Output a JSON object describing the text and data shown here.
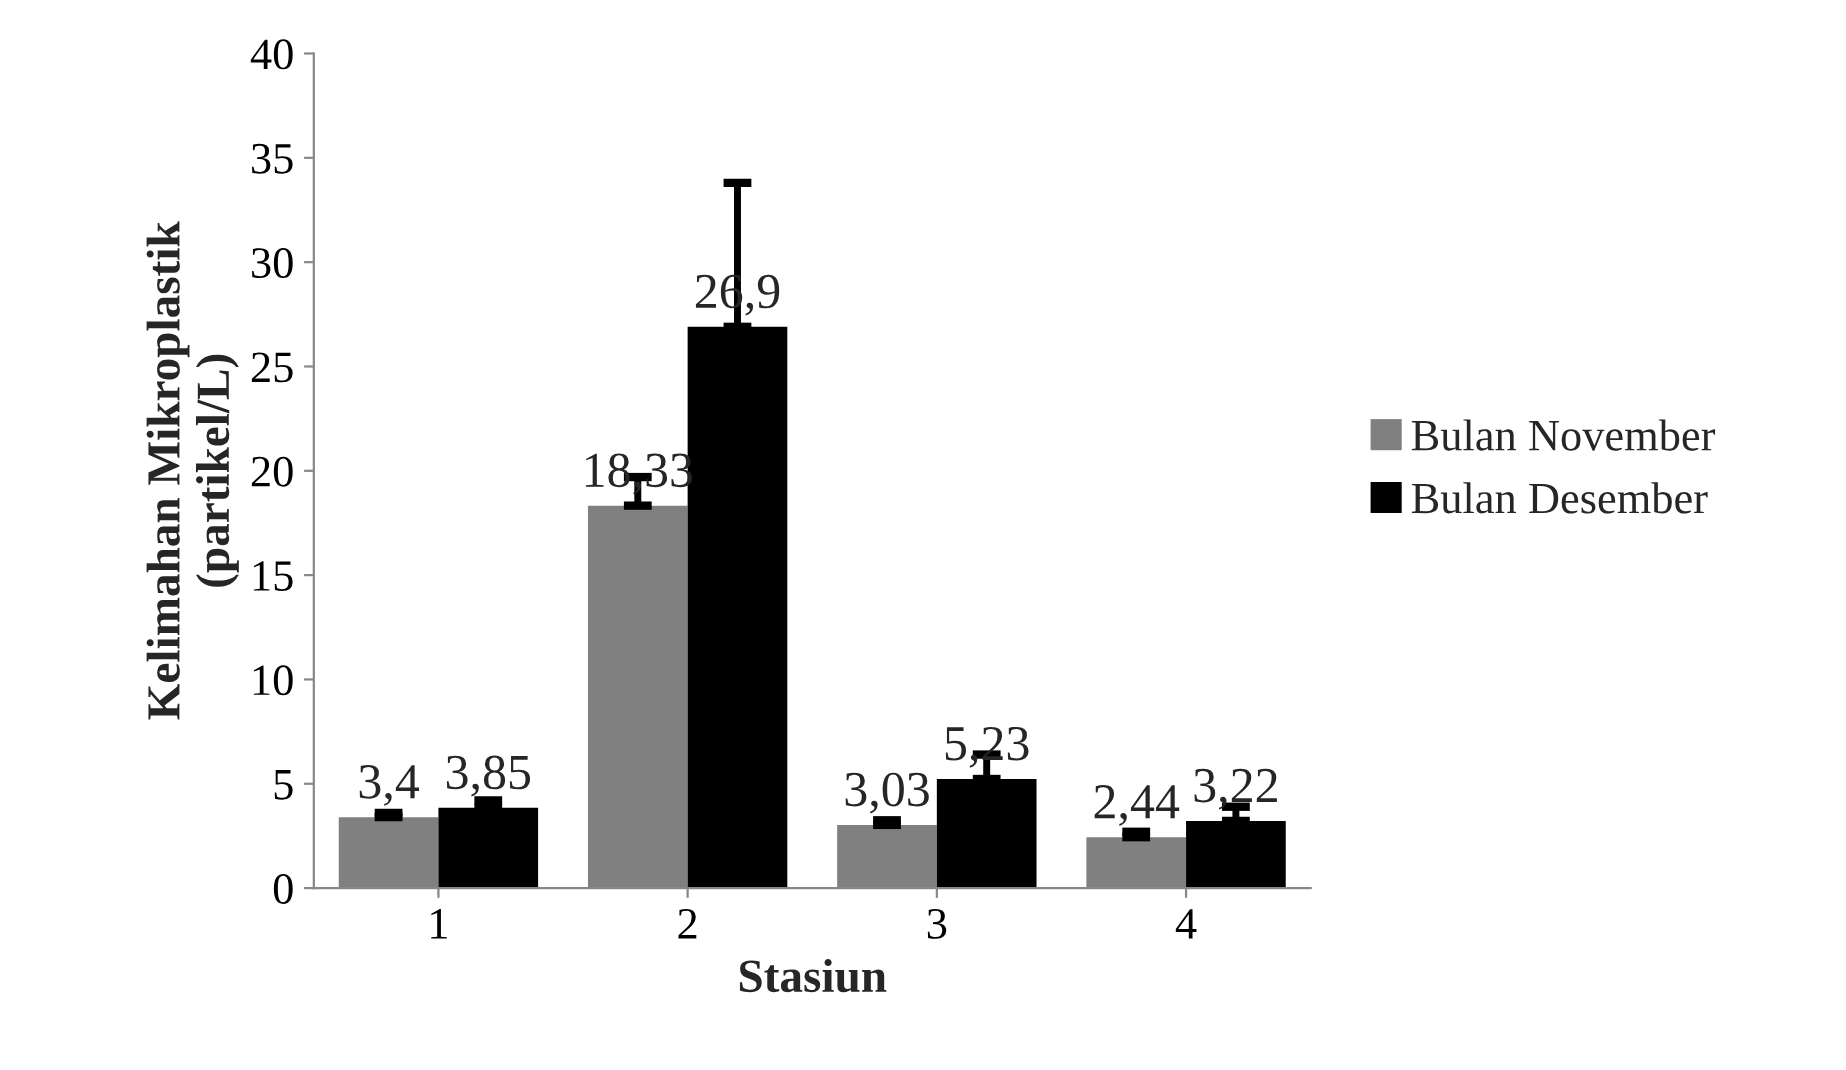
{
  "chart_data": {
    "type": "bar",
    "xlabel": "Stasiun",
    "ylabel": "Kelimahan Mikroplastik\n(partikel/L)",
    "categories": [
      "1",
      "2",
      "3",
      "4"
    ],
    "series": [
      {
        "name": "Bulan November",
        "color": "#808080",
        "values": [
          3.4,
          18.33,
          3.03,
          2.44
        ],
        "value_labels": [
          "3,4",
          "18,33",
          "3,03",
          "2,44"
        ],
        "errors": [
          [
            3.4,
            3.6
          ],
          [
            18.33,
            19.7
          ],
          [
            3.03,
            3.25
          ],
          [
            2.44,
            2.7
          ]
        ]
      },
      {
        "name": "Bulan Desember",
        "color": "#000000",
        "values": [
          3.85,
          26.9,
          5.23,
          3.22
        ],
        "value_labels": [
          "3,85",
          "26,9",
          "5,23",
          "3,22"
        ],
        "errors": [
          [
            3.85,
            4.2
          ],
          [
            26.9,
            33.8
          ],
          [
            5.23,
            6.4
          ],
          [
            3.22,
            3.9
          ]
        ]
      }
    ],
    "ylim": [
      0,
      40
    ],
    "yticks": [
      0,
      5,
      10,
      15,
      20,
      25,
      30,
      35,
      40
    ],
    "grid": false,
    "legend": "right"
  }
}
